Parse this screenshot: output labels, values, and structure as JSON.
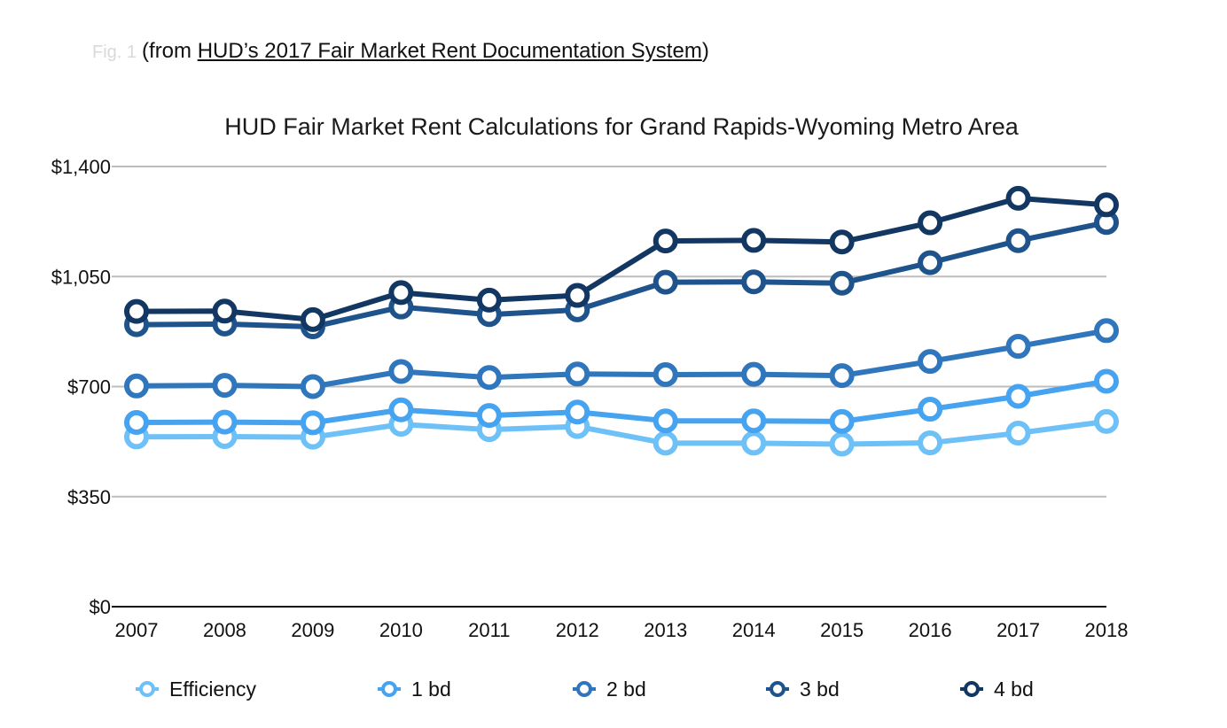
{
  "caption": {
    "faint_prefix": "Fig. 1",
    "before": "(from ",
    "link_text": "HUD’s 2017 Fair Market Rent Documentation System",
    "after": ")"
  },
  "chart_data": {
    "type": "line",
    "title": "HUD Fair Market Rent Calculations for Grand Rapids-Wyoming Metro Area",
    "xlabel": "",
    "ylabel": "",
    "x": [
      "2007",
      "2008",
      "2009",
      "2010",
      "2011",
      "2012",
      "2013",
      "2014",
      "2015",
      "2016",
      "2017",
      "2018"
    ],
    "ylim": [
      0,
      1400
    ],
    "yticks": [
      0,
      350,
      700,
      1050,
      1400
    ],
    "ytick_labels": [
      "$0",
      "$350",
      "$700",
      "$1,050",
      "$1,400"
    ],
    "grid": true,
    "legend_position": "bottom",
    "series": [
      {
        "name": "Efficiency",
        "color": "#6ec1f7",
        "values": [
          540,
          541,
          539,
          580,
          563,
          573,
          520,
          520,
          517,
          521,
          552,
          589
        ]
      },
      {
        "name": "1 bd",
        "color": "#45a3f0",
        "values": [
          586,
          587,
          585,
          626,
          608,
          619,
          591,
          591,
          589,
          628,
          669,
          717
        ]
      },
      {
        "name": "2 bd",
        "color": "#2f76bd",
        "values": [
          702,
          704,
          700,
          748,
          729,
          740,
          738,
          739,
          735,
          780,
          828,
          878
        ]
      },
      {
        "name": "3 bd",
        "color": "#1f538c",
        "values": [
          897,
          899,
          890,
          953,
          929,
          944,
          1032,
          1033,
          1029,
          1094,
          1164,
          1222
        ]
      },
      {
        "name": "4 bd",
        "color": "#133763",
        "values": [
          939,
          940,
          913,
          999,
          975,
          990,
          1163,
          1165,
          1160,
          1221,
          1299,
          1278
        ]
      }
    ]
  }
}
